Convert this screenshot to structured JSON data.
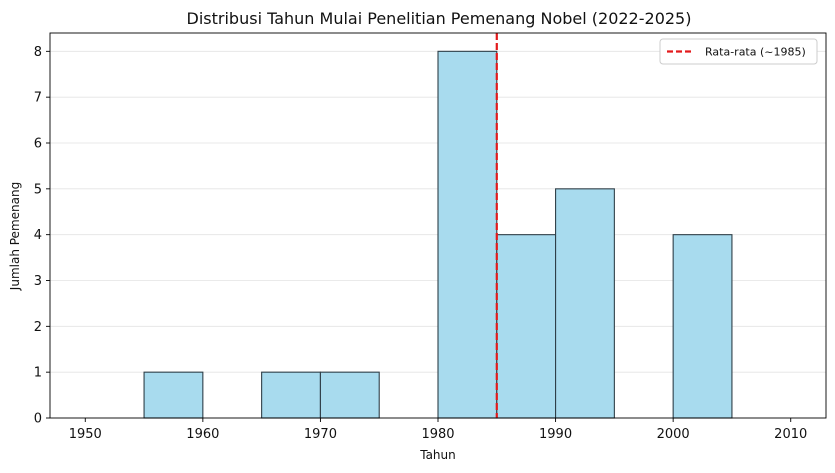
{
  "chart_data": {
    "type": "bar",
    "title": "Distribusi Tahun Mulai Penelitian Pemenang Nobel (2022-2025)",
    "xlabel": "Tahun",
    "ylabel": "Jumlah Pemenang",
    "xlim": [
      1947,
      2013
    ],
    "ylim": [
      0,
      8.4
    ],
    "x_ticks": [
      1950,
      1960,
      1970,
      1980,
      1990,
      2000,
      2010
    ],
    "y_ticks": [
      0,
      1,
      2,
      3,
      4,
      5,
      6,
      7,
      8
    ],
    "bins": [
      {
        "start": 1950,
        "end": 1955,
        "count": 0
      },
      {
        "start": 1955,
        "end": 1960,
        "count": 1
      },
      {
        "start": 1960,
        "end": 1965,
        "count": 0
      },
      {
        "start": 1965,
        "end": 1970,
        "count": 1
      },
      {
        "start": 1970,
        "end": 1975,
        "count": 1
      },
      {
        "start": 1975,
        "end": 1980,
        "count": 0
      },
      {
        "start": 1980,
        "end": 1985,
        "count": 8
      },
      {
        "start": 1985,
        "end": 1990,
        "count": 4
      },
      {
        "start": 1990,
        "end": 1995,
        "count": 5
      },
      {
        "start": 1995,
        "end": 2000,
        "count": 0
      },
      {
        "start": 2000,
        "end": 2005,
        "count": 4
      },
      {
        "start": 2005,
        "end": 2010,
        "count": 0
      }
    ],
    "mean_line": {
      "x": 1985,
      "label": "Rata-rata (~1985)",
      "color": "#e31a1c",
      "style": "dashed"
    },
    "bar_color": "#a8dbee",
    "bar_edge_color": "#2f3f48",
    "grid": "y",
    "legend_position": "top-right"
  }
}
